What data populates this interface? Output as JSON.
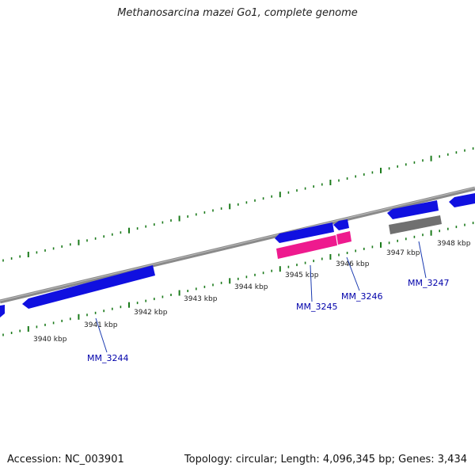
{
  "title": "Methanosarcina mazei Go1, complete genome",
  "footer": {
    "accession": "Accession: NC_003901",
    "summary": "Topology: circular; Length: 4,096,345 bp; Genes: 3,434"
  },
  "colors": {
    "backbone": "#8a8a8a",
    "tick": "#1a7a1a",
    "gene_blue": "#1010e0",
    "gene_pink": "#ee1a8e",
    "gene_gray": "#707070",
    "leader": "#1a3ab0"
  },
  "kbp_labels": [
    "3940 kbp",
    "3941 kbp",
    "3942 kbp",
    "3943 kbp",
    "3944 kbp",
    "3945 kbp",
    "3946 kbp",
    "3947 kbp",
    "3948 kbp"
  ],
  "gene_labels": [
    "MM_3244",
    "MM_3245",
    "MM_3246",
    "MM_3247"
  ]
}
